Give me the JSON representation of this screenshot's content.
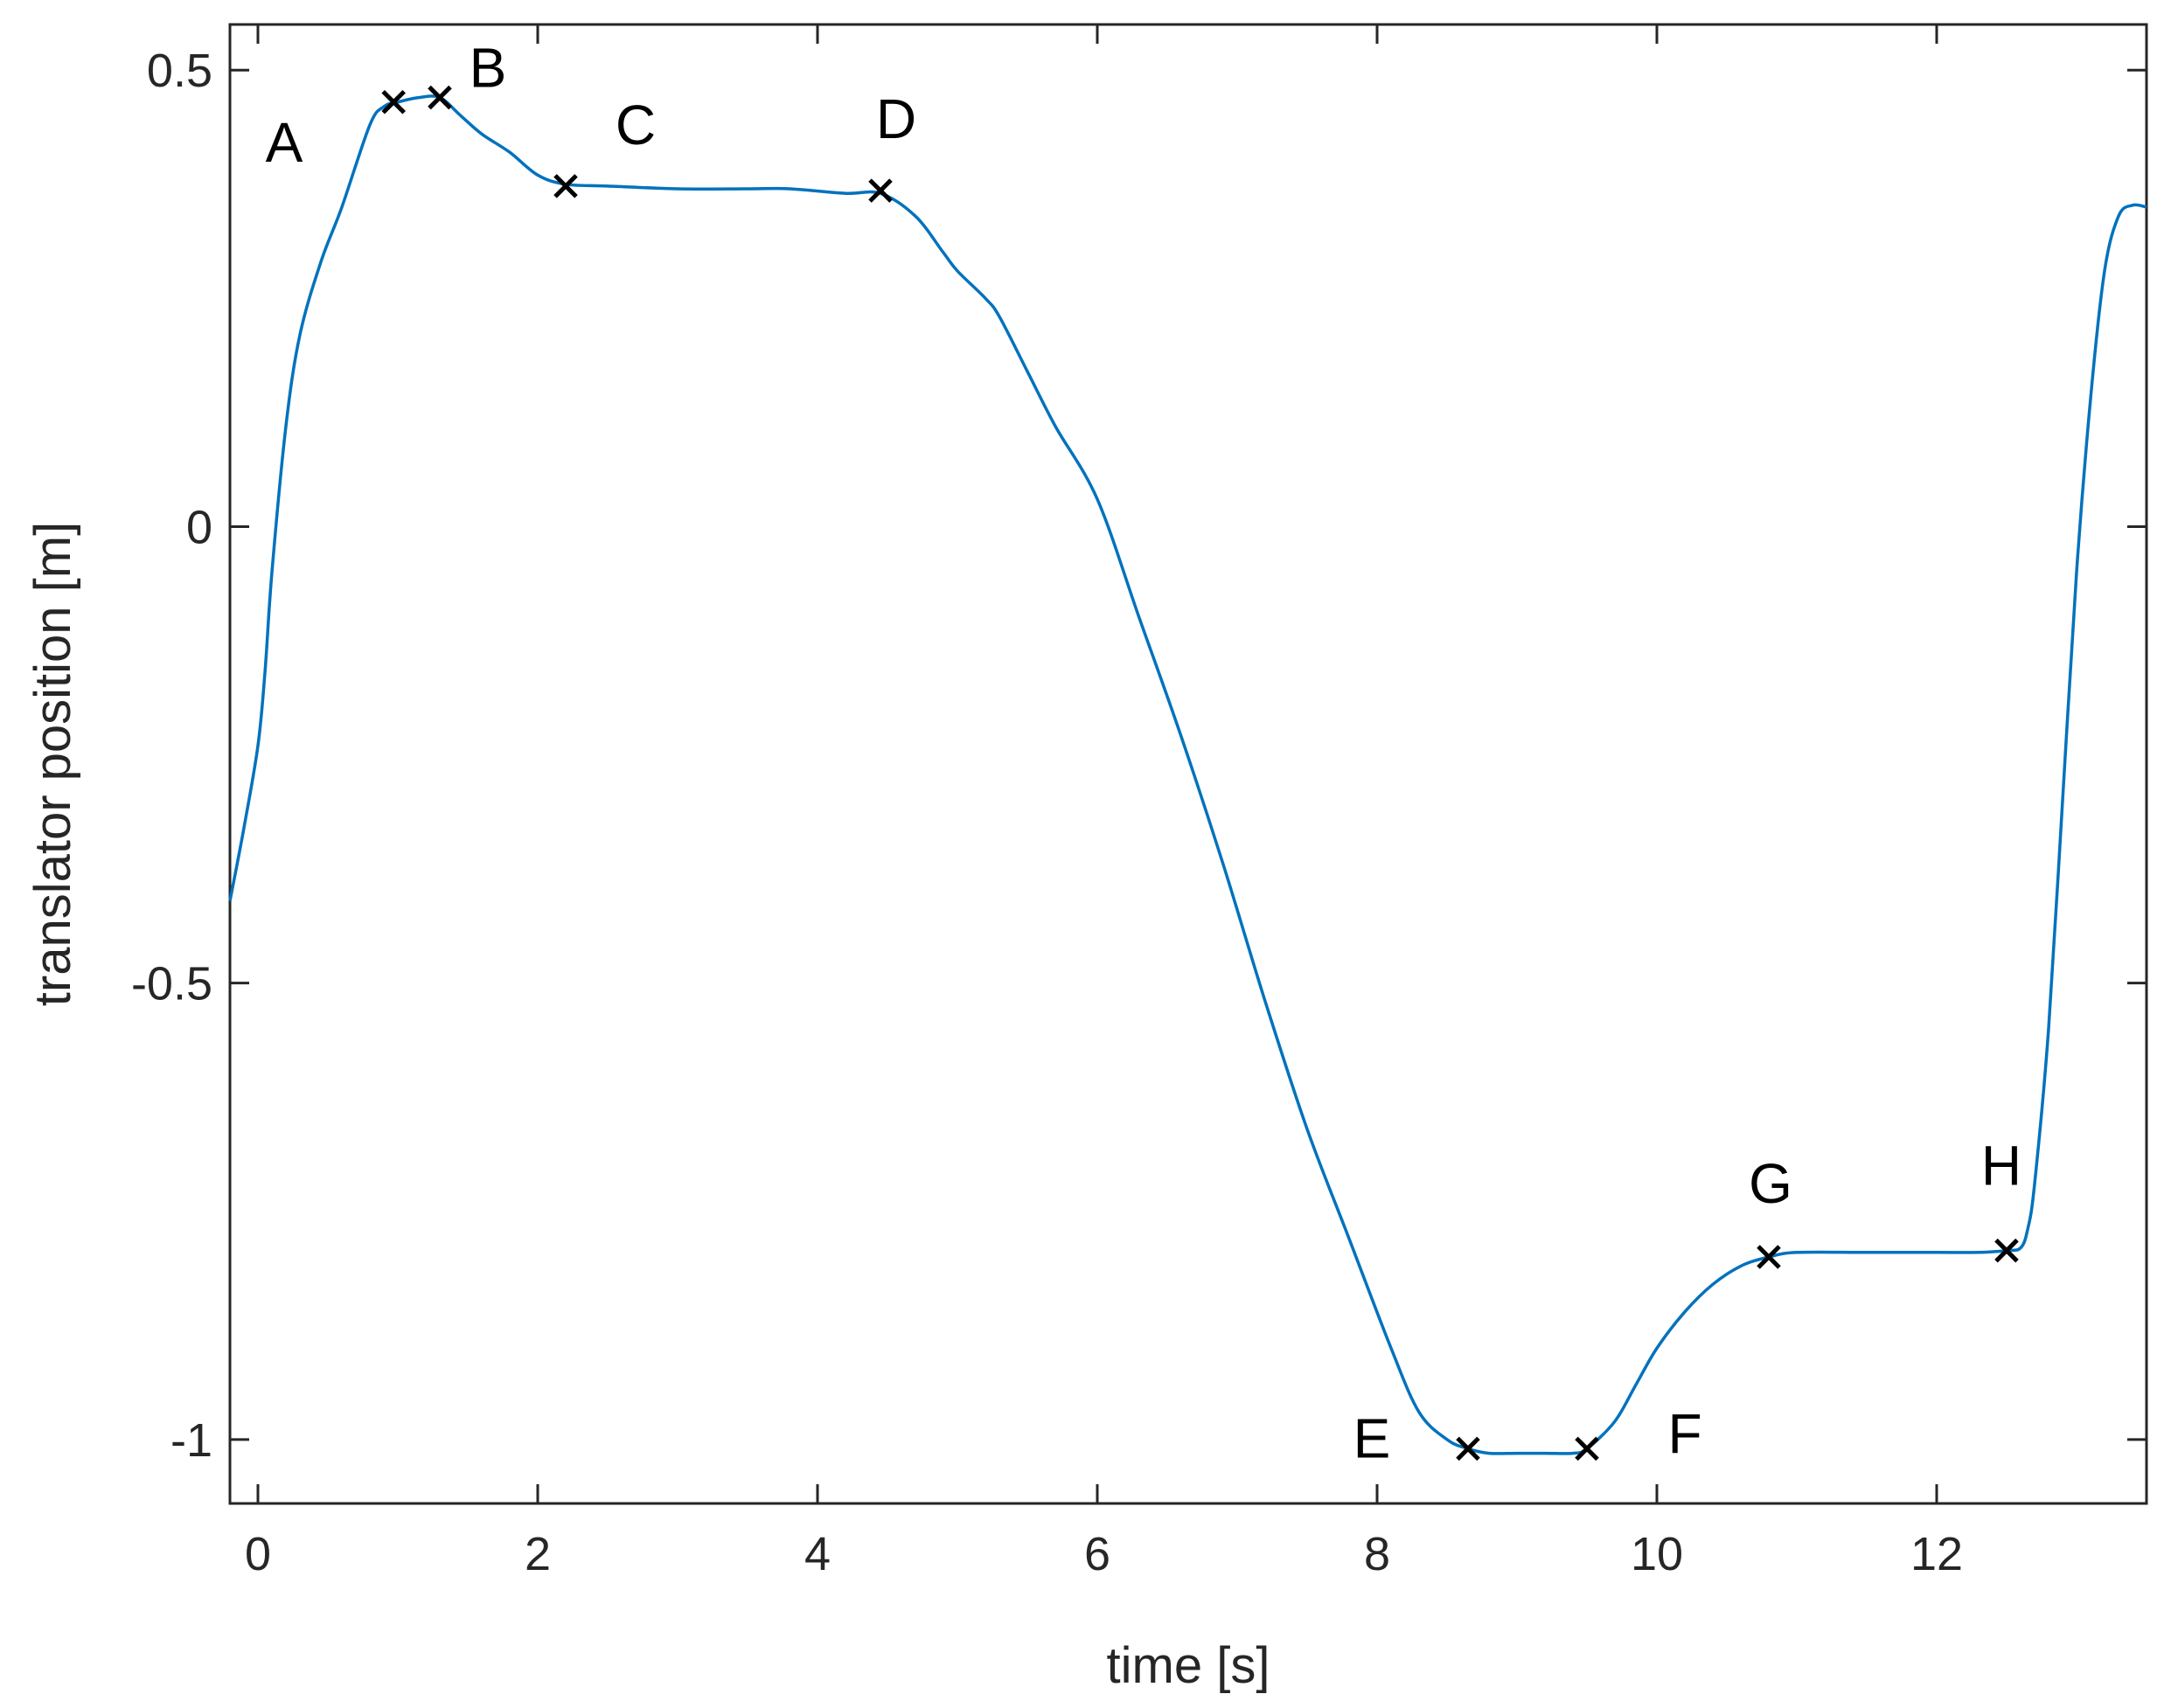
{
  "chart_data": {
    "type": "line",
    "xlabel": "time [s]",
    "ylabel": "translator position [m]",
    "xlim": [
      -0.2,
      13.5
    ],
    "ylim": [
      -1.07,
      0.55
    ],
    "xticks": [
      0,
      2,
      4,
      6,
      8,
      10,
      12
    ],
    "xtick_labels": [
      "0",
      "2",
      "4",
      "6",
      "8",
      "10",
      "12"
    ],
    "yticks": [
      0.5,
      0,
      -0.5,
      -1
    ],
    "ytick_labels": [
      "0.5",
      "0",
      "-0.5",
      "-1"
    ],
    "grid": false,
    "series_color": "#0072BD",
    "marker_color": "#000000",
    "series": [
      {
        "x": [
          -0.2,
          -0.1,
          0.0,
          0.05,
          0.1,
          0.2,
          0.3,
          0.45,
          0.6,
          0.8,
          0.9,
          1.0,
          1.15,
          1.3,
          1.45,
          1.6,
          1.8,
          2.0,
          2.2,
          2.5,
          3.0,
          3.5,
          3.8,
          4.2,
          4.45,
          4.7,
          4.9,
          5.0,
          5.2,
          5.3,
          5.5,
          5.7,
          6.0,
          6.3,
          6.6,
          6.9,
          7.2,
          7.5,
          7.8,
          8.1,
          8.3,
          8.5,
          8.65,
          8.8,
          9.0,
          9.2,
          9.4,
          9.5,
          9.7,
          9.85,
          10.0,
          10.2,
          10.4,
          10.6,
          10.8,
          11.0,
          11.5,
          12.0,
          12.3,
          12.5,
          12.6,
          12.65,
          12.7,
          12.8,
          12.9,
          13.0,
          13.1,
          13.2,
          13.3,
          13.4,
          13.5
        ],
        "y": [
          -0.41,
          -0.33,
          -0.24,
          -0.16,
          -0.05,
          0.11,
          0.21,
          0.29,
          0.35,
          0.44,
          0.46,
          0.465,
          0.47,
          0.47,
          0.45,
          0.43,
          0.41,
          0.385,
          0.375,
          0.373,
          0.37,
          0.37,
          0.37,
          0.365,
          0.365,
          0.34,
          0.3,
          0.28,
          0.25,
          0.23,
          0.17,
          0.11,
          0.03,
          -0.1,
          -0.23,
          -0.37,
          -0.52,
          -0.66,
          -0.78,
          -0.9,
          -0.97,
          -1.0,
          -1.01,
          -1.015,
          -1.015,
          -1.015,
          -1.015,
          -1.01,
          -0.98,
          -0.94,
          -0.9,
          -0.86,
          -0.83,
          -0.81,
          -0.8,
          -0.795,
          -0.795,
          -0.795,
          -0.795,
          -0.793,
          -0.79,
          -0.77,
          -0.72,
          -0.55,
          -0.3,
          -0.05,
          0.14,
          0.28,
          0.34,
          0.352,
          0.35
        ]
      }
    ],
    "points": [
      {
        "label": "B",
        "x": 1.3,
        "y": 0.47,
        "marker": true
      },
      {
        "label": "C",
        "x": 2.2,
        "y": 0.373,
        "marker": true
      },
      {
        "label": "D",
        "x": 4.45,
        "y": 0.368,
        "marker": true
      },
      {
        "label": "E",
        "x": 8.65,
        "y": -1.01,
        "marker": true
      },
      {
        "label": "F",
        "x": 9.5,
        "y": -1.01,
        "marker": true
      },
      {
        "label": "G",
        "x": 10.8,
        "y": -0.8,
        "marker": true
      },
      {
        "label": "H",
        "x": 12.5,
        "y": -0.793,
        "marker": true
      },
      {
        "label": "",
        "x": 0.97,
        "y": 0.465,
        "marker": true
      },
      {
        "label": "A",
        "x": 0.0,
        "y": 0.42,
        "marker": false
      }
    ]
  }
}
